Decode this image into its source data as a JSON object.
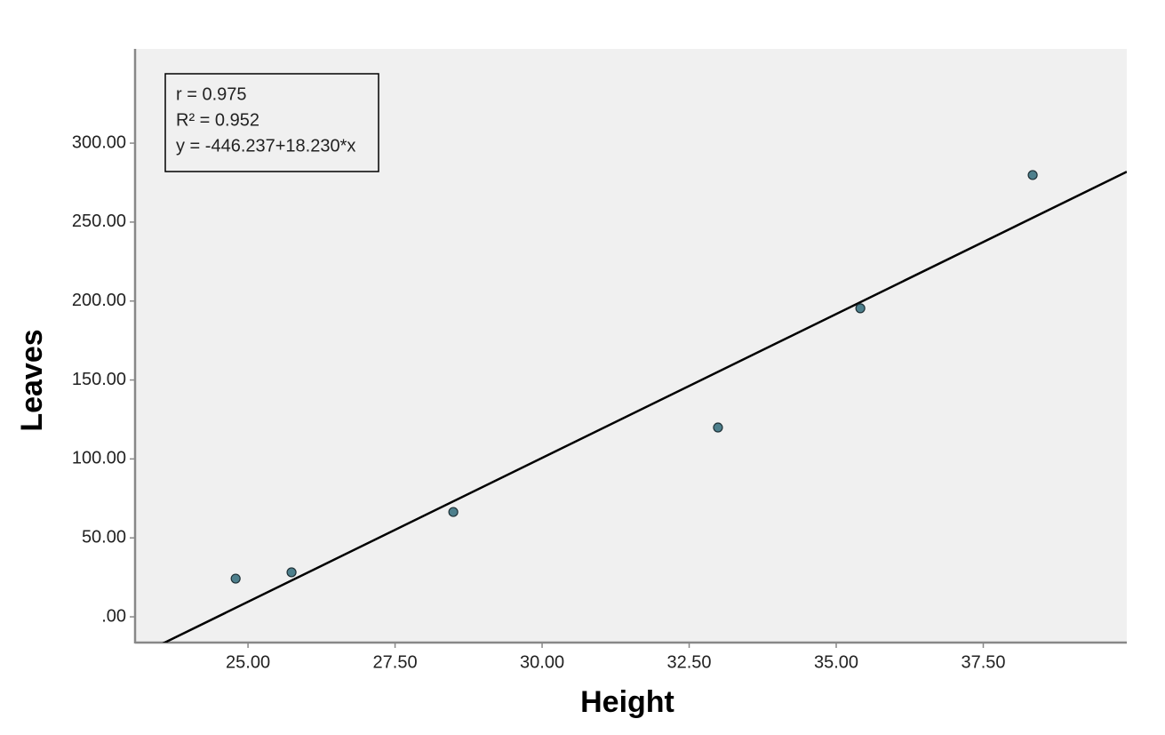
{
  "chart_data": {
    "type": "scatter",
    "x_label": "Height",
    "y_label": "Leaves",
    "annotations": [
      "r = 0.975",
      "R² = 0.952",
      "y = -446.237+18.230*x"
    ],
    "x": [
      24.79,
      25.74,
      28.49,
      32.99,
      35.41,
      38.34
    ],
    "values": [
      24.2,
      28.2,
      66.4,
      119.9,
      195.4,
      279.8
    ],
    "color": "#4d7f8c",
    "fit": {
      "intercept": -446.237,
      "slope": 18.23,
      "color": "#000000"
    },
    "xlim": [
      23.08,
      39.94
    ],
    "ylim": [
      -16.3,
      359.7
    ],
    "xticks": [
      {
        "value": 25,
        "label": "25.00"
      },
      {
        "value": 27.5,
        "label": "27.50"
      },
      {
        "value": 30,
        "label": "30.00"
      },
      {
        "value": 32.5,
        "label": "32.50"
      },
      {
        "value": 35,
        "label": "35.00"
      },
      {
        "value": 37.5,
        "label": "37.50"
      }
    ],
    "yticks": [
      {
        "value": 0,
        "label": ".00"
      },
      {
        "value": 50,
        "label": "50.00"
      },
      {
        "value": 100,
        "label": "100.00"
      },
      {
        "value": 150,
        "label": "150.00"
      },
      {
        "value": 200,
        "label": "200.00"
      },
      {
        "value": 250,
        "label": "250.00"
      },
      {
        "value": 300,
        "label": "300.00"
      }
    ]
  }
}
